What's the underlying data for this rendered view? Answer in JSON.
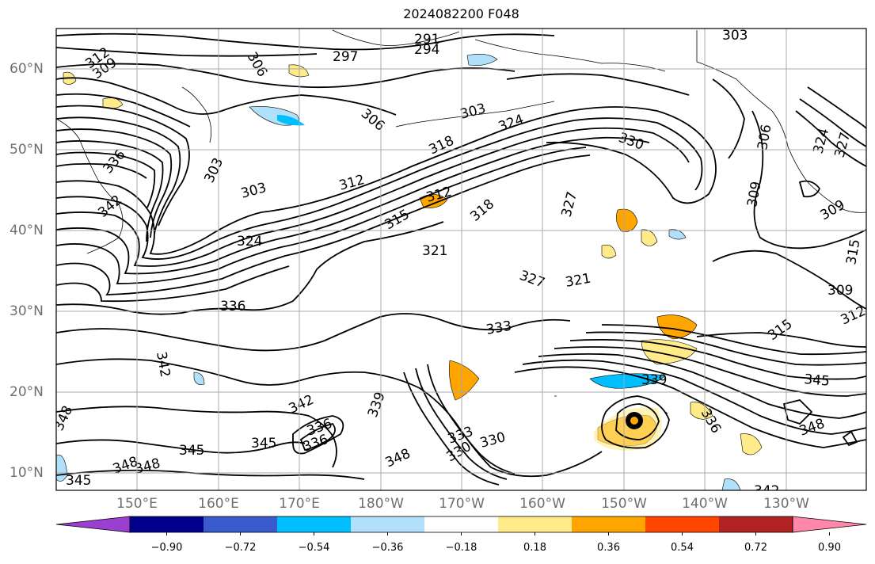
{
  "title": "2024082200 F048",
  "lat_labels": [
    "60°N",
    "50°N",
    "40°N",
    "30°N",
    "20°N",
    "10°N"
  ],
  "lon_labels": [
    "150°E",
    "160°E",
    "170°E",
    "180°W",
    "170°W",
    "160°W",
    "150°W",
    "140°W",
    "130°W"
  ],
  "colorbar": {
    "ticks": [
      "−0.90",
      "−0.72",
      "−0.54",
      "−0.36",
      "−0.18",
      "0.18",
      "0.36",
      "0.54",
      "0.72",
      "0.90"
    ],
    "colors": [
      "#9a3fd0",
      "#00008b",
      "#3a5bcc",
      "#00bfff",
      "#b0e0fa",
      "#ffffff",
      "#ffeb8a",
      "#ffa500",
      "#ff4500",
      "#b22222",
      "#ff88aa"
    ]
  },
  "contour_labels": [
    "291",
    "294",
    "297",
    "303",
    "312",
    "309",
    "306",
    "303",
    "306",
    "303",
    "312",
    "318",
    "324",
    "330",
    "336",
    "342",
    "303",
    "312",
    "315",
    "318",
    "321",
    "324",
    "327",
    "327",
    "321",
    "336",
    "333",
    "342",
    "342",
    "339",
    "336",
    "336",
    "333",
    "330",
    "330",
    "345",
    "348",
    "348",
    "348",
    "345",
    "348",
    "345",
    "348",
    "345",
    "315",
    "312",
    "309",
    "309",
    "309",
    "324",
    "327",
    "315",
    "336",
    "339",
    "342",
    "306"
  ]
}
